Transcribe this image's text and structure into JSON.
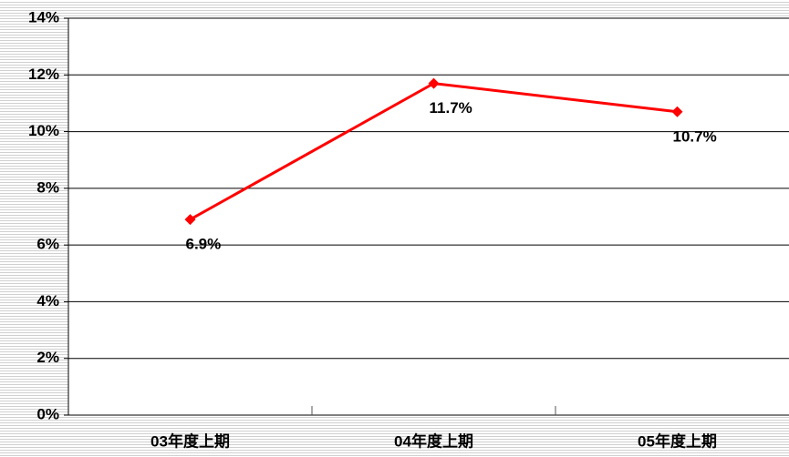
{
  "chart_data": {
    "type": "line",
    "categories": [
      "03年度上期",
      "04年度上期",
      "05年度上期"
    ],
    "series": [
      {
        "name": "",
        "color": "#ff0000",
        "values": [
          6.9,
          11.7,
          10.7
        ],
        "value_labels": [
          "6.9%",
          "11.7%",
          "10.7%"
        ]
      }
    ],
    "ylim": [
      0,
      14
    ],
    "yticks": [
      {
        "value": 0,
        "label": "0%"
      },
      {
        "value": 2,
        "label": "2%"
      },
      {
        "value": 4,
        "label": "4%"
      },
      {
        "value": 6,
        "label": "6%"
      },
      {
        "value": 8,
        "label": "8%"
      },
      {
        "value": 10,
        "label": "10%"
      },
      {
        "value": 12,
        "label": "12%"
      },
      {
        "value": 14,
        "label": "14%"
      }
    ],
    "grid": true
  }
}
